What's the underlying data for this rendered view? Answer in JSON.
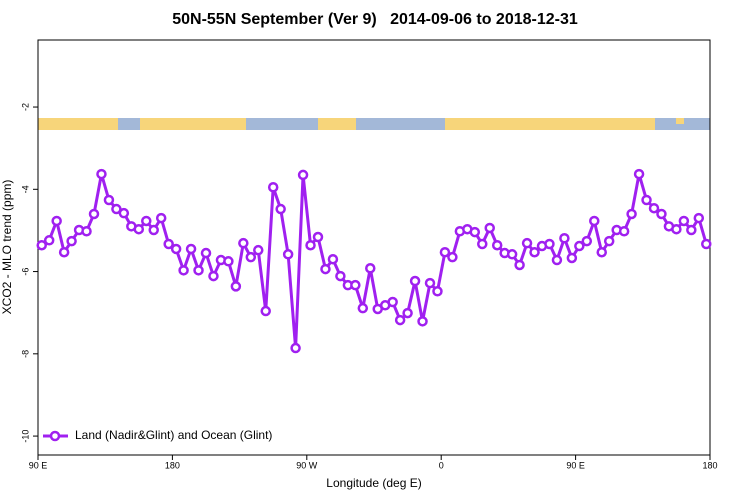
{
  "chart_data": {
    "type": "line",
    "title": "50N-55N September (Ver 9)   2014-09-06 to 2018-12-31",
    "xlabel": "Longitude (deg E)",
    "ylabel": "XCO2 - MLO trend (ppm)",
    "xlim": [
      90,
      540
    ],
    "xticks": [
      {
        "value": 90,
        "label": "90 E"
      },
      {
        "value": 180,
        "label": "180"
      },
      {
        "value": 270,
        "label": "90 W"
      },
      {
        "value": 360,
        "label": "0"
      },
      {
        "value": 450,
        "label": "90 E"
      },
      {
        "value": 540,
        "label": "180"
      }
    ],
    "ylim": [
      -10.46,
      -0.37
    ],
    "yticks": [
      -2,
      -4,
      -6,
      -8,
      -10
    ],
    "legend": "bottom-left",
    "x": [
      92.5,
      97.5,
      102.5,
      107.5,
      112.5,
      117.5,
      122.5,
      127.5,
      132.5,
      137.5,
      142.5,
      147.5,
      152.5,
      157.5,
      162.5,
      167.5,
      172.5,
      177.5,
      182.5,
      187.5,
      192.5,
      197.5,
      202.5,
      207.5,
      212.5,
      217.5,
      222.5,
      227.5,
      232.5,
      237.5,
      242.5,
      247.5,
      252.5,
      257.5,
      262.5,
      267.5,
      272.5,
      277.5,
      282.5,
      287.5,
      292.5,
      297.5,
      302.5,
      307.5,
      312.5,
      317.5,
      322.5,
      327.5,
      332.5,
      337.5,
      342.5,
      347.5,
      352.5,
      357.5,
      362.5,
      367.5,
      372.5,
      377.5,
      382.5,
      387.5,
      392.5,
      397.5,
      402.5,
      407.5,
      412.5,
      417.5,
      422.5,
      427.5,
      432.5,
      437.5,
      442.5,
      447.5,
      452.5,
      457.5,
      462.5,
      467.5,
      472.5,
      477.5,
      482.5,
      487.5,
      492.5,
      497.5,
      502.5,
      507.5,
      512.5,
      517.5,
      522.5,
      527.5,
      532.5,
      537.5
    ],
    "series": [
      {
        "name": "Land (Nadir&Glint) and Ocean (Glint)",
        "color": "#a020f0",
        "values": [
          -5.36,
          -5.24,
          -4.77,
          -5.53,
          -5.26,
          -4.99,
          -5.02,
          -4.6,
          -3.63,
          -4.26,
          -4.48,
          -4.58,
          -4.9,
          -4.97,
          -4.77,
          -4.99,
          -4.7,
          -5.33,
          -5.45,
          -5.97,
          -5.45,
          -5.97,
          -5.55,
          -6.11,
          -5.72,
          -5.75,
          -6.36,
          -5.31,
          -5.65,
          -5.48,
          -6.96,
          -3.95,
          -4.48,
          -5.58,
          -7.86,
          -3.65,
          -5.36,
          -5.16,
          -5.94,
          -5.7,
          -6.11,
          -6.33,
          -6.33,
          -6.89,
          -5.92,
          -6.91,
          -6.82,
          -6.74,
          -7.18,
          -7.01,
          -6.23,
          -7.21,
          -6.28,
          -6.48,
          -5.53,
          -5.65,
          -5.02,
          -4.97,
          -5.04,
          -5.33,
          -4.94,
          -5.36,
          -5.55,
          -5.58,
          -5.84,
          -5.31,
          -5.53,
          -5.38,
          -5.33,
          -5.72,
          -5.19,
          -5.67,
          -5.38,
          -5.26,
          -4.77,
          -5.53,
          -5.26,
          -4.99,
          -5.02,
          -4.6,
          -3.63,
          -4.26,
          -4.46,
          -4.6,
          -4.9,
          -4.97,
          -4.77,
          -4.99,
          -4.7,
          -5.33
        ]
      }
    ]
  }
}
